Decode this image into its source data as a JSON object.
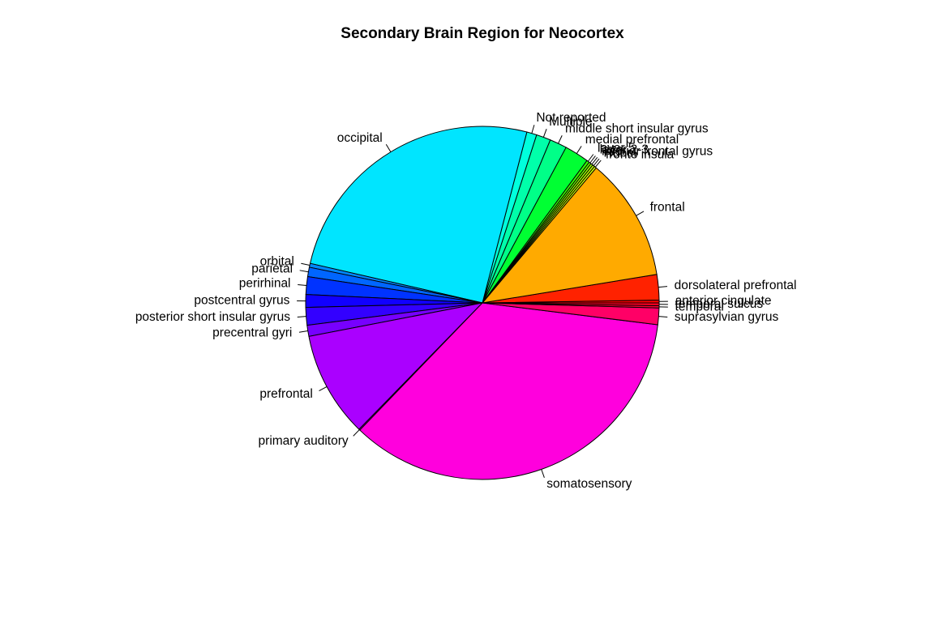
{
  "chart_data": {
    "type": "pie",
    "title": "Secondary Brain Region for Neocortex",
    "start_angle_deg": 0,
    "direction": "counterclockwise",
    "slices": [
      {
        "label": "anterior cingulate",
        "value": 0.25,
        "color": "#FF0000"
      },
      {
        "label": "dorsolateral prefrontal",
        "value": 2.3,
        "color": "#FF2200"
      },
      {
        "label": "frontal",
        "value": 11.15,
        "color": "#FFAA00"
      },
      {
        "label": "fronto insula",
        "value": 0.2,
        "color": "#CCFF00"
      },
      {
        "label": "Hubel",
        "value": 0.2,
        "color": "#BBFF00"
      },
      {
        "label": "inferior frontal gyrus",
        "value": 0.2,
        "color": "#99FF00"
      },
      {
        "label": "layer 2-3",
        "value": 0.2,
        "color": "#66FF00"
      },
      {
        "label": "layer 5",
        "value": 0.25,
        "color": "#33FF00"
      },
      {
        "label": "medial prefrontal",
        "value": 2.2,
        "color": "#00FF33"
      },
      {
        "label": "middle short insular gyrus",
        "value": 1.55,
        "color": "#00FF88"
      },
      {
        "label": "Multiple",
        "value": 1.3,
        "color": "#00FFAA"
      },
      {
        "label": "Not reported",
        "value": 0.9,
        "color": "#00FFDD"
      },
      {
        "label": "occipital",
        "value": 25.15,
        "color": "#00E5FF"
      },
      {
        "label": "orbital",
        "value": 0.35,
        "color": "#0088FF"
      },
      {
        "label": "parietal",
        "value": 0.85,
        "color": "#0066FF"
      },
      {
        "label": "perirhinal",
        "value": 1.6,
        "color": "#0033FF"
      },
      {
        "label": "postcentral gyrus",
        "value": 1.15,
        "color": "#1100FF"
      },
      {
        "label": "posterior short insular gyrus",
        "value": 1.6,
        "color": "#3300FF"
      },
      {
        "label": "precentral gyri",
        "value": 1.0,
        "color": "#7700FF"
      },
      {
        "label": "prefrontal",
        "value": 9.55,
        "color": "#AA00FF"
      },
      {
        "label": "primary auditory",
        "value": 0.1,
        "color": "#DD00FF"
      },
      {
        "label": "somatosensory",
        "value": 34.8,
        "color": "#FF00DD"
      },
      {
        "label": "suprasylvian gyrus",
        "value": 1.5,
        "color": "#FF0066"
      },
      {
        "label": "temporal",
        "value": 0.2,
        "color": "#FF0033"
      },
      {
        "label": "temporal sulcus",
        "value": 0.25,
        "color": "#FF0022"
      }
    ]
  }
}
